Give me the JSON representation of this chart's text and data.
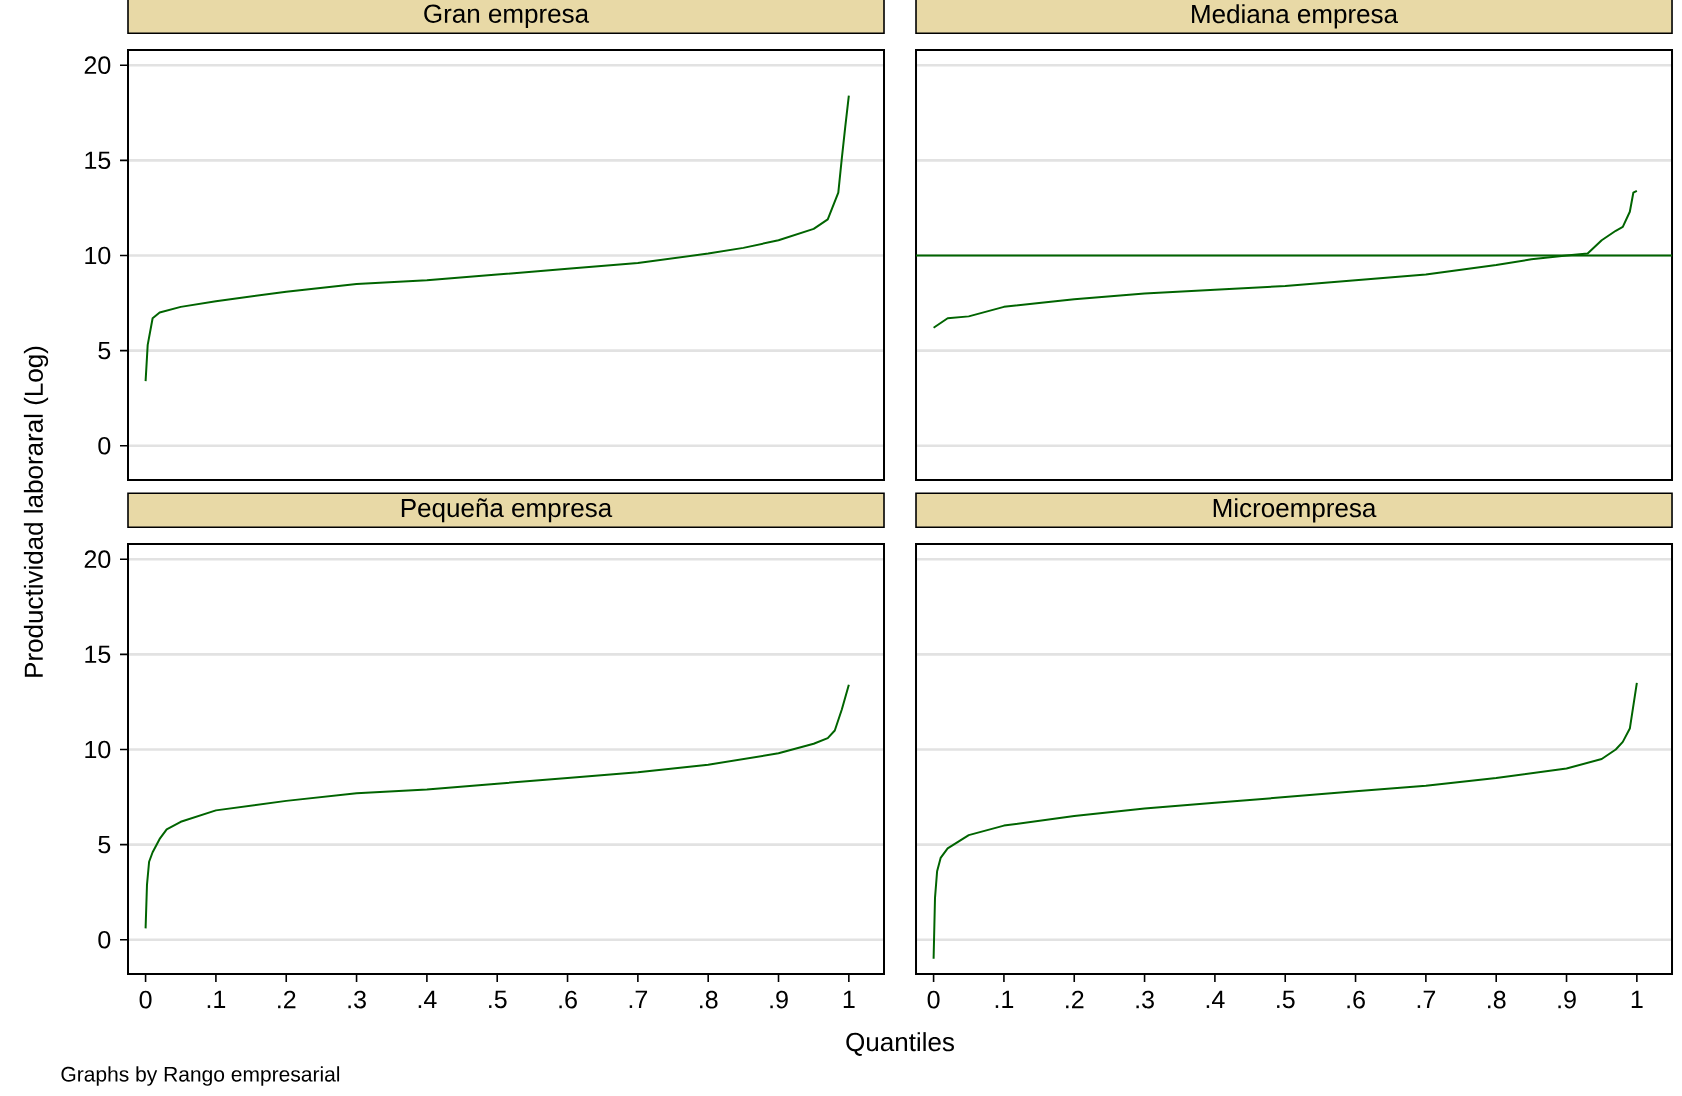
{
  "chart_data": [
    {
      "type": "line",
      "title": "Gran empresa",
      "ylabel": "Productividad laboraral (Log)",
      "color": "#006400",
      "grid": "y",
      "tick_labels": "y",
      "xlim": [
        -0.025,
        1.05
      ],
      "ylim": [
        -1.8,
        20.8
      ],
      "yticks": [
        0,
        5,
        10,
        15,
        20
      ],
      "x": [
        0,
        0.003,
        0.01,
        0.02,
        0.05,
        0.1,
        0.2,
        0.3,
        0.4,
        0.5,
        0.6,
        0.7,
        0.8,
        0.85,
        0.9,
        0.95,
        0.97,
        0.985,
        0.99,
        0.995,
        1.0
      ],
      "values": [
        3.4,
        5.3,
        6.7,
        7.0,
        7.3,
        7.6,
        8.1,
        8.5,
        8.7,
        9.0,
        9.3,
        9.6,
        10.1,
        10.4,
        10.8,
        11.4,
        11.9,
        13.3,
        15.1,
        16.8,
        18.4
      ]
    },
    {
      "type": "line",
      "title": "Mediana empresa",
      "color": "#006400",
      "grid": "y",
      "tick_labels": false,
      "xlim": [
        -0.025,
        1.05
      ],
      "ylim": [
        -1.8,
        20.8
      ],
      "yticks": [
        0,
        5,
        10,
        15,
        20
      ],
      "x": [
        0,
        0.02,
        0.05,
        0.1,
        0.15,
        0.2,
        0.3,
        0.4,
        0.5,
        0.6,
        0.7,
        0.8,
        0.85,
        0.9,
        0.93,
        0.95,
        0.97,
        0.98,
        0.99,
        0.995,
        1.0
      ],
      "values": [
        6.2,
        6.7,
        6.8,
        7.3,
        7.5,
        7.7,
        8.0,
        8.2,
        8.4,
        8.7,
        9.0,
        9.5,
        9.8,
        10.0,
        10.1,
        10.8,
        11.3,
        11.5,
        12.3,
        13.3,
        13.4
      ],
      "ref_lines": [
        {
          "axis": "y",
          "value": 10,
          "color": "#006400"
        }
      ]
    },
    {
      "type": "line",
      "title": "Pequeña empresa",
      "xlabel": "Quantiles",
      "annotations": [
        "Graphs by Rango empresarial"
      ],
      "color": "#006400",
      "grid": "y",
      "xlim": [
        -0.025,
        1.05
      ],
      "ylim": [
        -1.8,
        20.8
      ],
      "yticks": [
        0,
        5,
        10,
        15,
        20
      ],
      "xticks": [
        0,
        {
          "value": 0.1,
          "label": ".1"
        },
        {
          "value": 0.2,
          "label": ".2"
        },
        {
          "value": 0.3,
          "label": ".3"
        },
        {
          "value": 0.4,
          "label": ".4"
        },
        {
          "value": 0.5,
          "label": ".5"
        },
        {
          "value": 0.6,
          "label": ".6"
        },
        {
          "value": 0.7,
          "label": ".7"
        },
        {
          "value": 0.8,
          "label": ".8"
        },
        {
          "value": 0.9,
          "label": ".9"
        },
        1
      ],
      "x": [
        0,
        0.002,
        0.005,
        0.01,
        0.02,
        0.03,
        0.05,
        0.1,
        0.2,
        0.3,
        0.4,
        0.5,
        0.6,
        0.7,
        0.8,
        0.9,
        0.95,
        0.97,
        0.98,
        0.99,
        1.0
      ],
      "values": [
        0.6,
        2.9,
        4.1,
        4.6,
        5.3,
        5.8,
        6.2,
        6.8,
        7.3,
        7.7,
        7.9,
        8.2,
        8.5,
        8.8,
        9.2,
        9.8,
        10.3,
        10.6,
        11.0,
        12.1,
        13.4
      ]
    },
    {
      "type": "line",
      "title": "Microempresa",
      "color": "#006400",
      "grid": "y",
      "tick_labels": "x",
      "xlim": [
        -0.025,
        1.05
      ],
      "ylim": [
        -1.8,
        20.8
      ],
      "yticks": [
        0,
        5,
        10,
        15,
        20
      ],
      "xticks": [
        0,
        {
          "value": 0.1,
          "label": ".1"
        },
        {
          "value": 0.2,
          "label": ".2"
        },
        {
          "value": 0.3,
          "label": ".3"
        },
        {
          "value": 0.4,
          "label": ".4"
        },
        {
          "value": 0.5,
          "label": ".5"
        },
        {
          "value": 0.6,
          "label": ".6"
        },
        {
          "value": 0.7,
          "label": ".7"
        },
        {
          "value": 0.8,
          "label": ".8"
        },
        {
          "value": 0.9,
          "label": ".9"
        },
        1
      ],
      "x": [
        0,
        0.002,
        0.005,
        0.01,
        0.02,
        0.05,
        0.1,
        0.2,
        0.3,
        0.4,
        0.5,
        0.6,
        0.7,
        0.8,
        0.9,
        0.95,
        0.97,
        0.98,
        0.99,
        1.0
      ],
      "values": [
        -1.0,
        2.2,
        3.6,
        4.3,
        4.8,
        5.5,
        6.0,
        6.5,
        6.9,
        7.2,
        7.5,
        7.8,
        8.1,
        8.5,
        9.0,
        9.5,
        10.0,
        10.4,
        11.1,
        13.5
      ]
    }
  ]
}
